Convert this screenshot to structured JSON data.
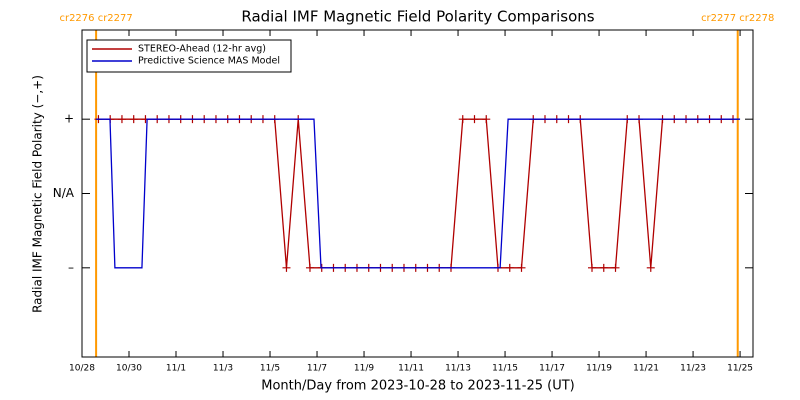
{
  "chart_data": {
    "type": "line",
    "title": "Radial IMF Magnetic Field Polarity Comparisons",
    "x_label": "Month/Day from 2023-10-28 to 2023-11-25 (UT)",
    "y_label": "Radial IMF Magnetic Field Polarity (−,+)",
    "xlim": [
      0,
      28.55
    ],
    "ylim": [
      -2.2,
      2.2
    ],
    "xticks": [
      {
        "value": 0,
        "label": "10/28"
      },
      {
        "value": 2,
        "label": "10/30"
      },
      {
        "value": 4,
        "label": "11/1"
      },
      {
        "value": 6,
        "label": "11/3"
      },
      {
        "value": 8,
        "label": "11/5"
      },
      {
        "value": 10,
        "label": "11/7"
      },
      {
        "value": 12,
        "label": "11/9"
      },
      {
        "value": 14,
        "label": "11/11"
      },
      {
        "value": 16,
        "label": "11/13"
      },
      {
        "value": 18,
        "label": "11/15"
      },
      {
        "value": 20,
        "label": "11/17"
      },
      {
        "value": 22,
        "label": "11/19"
      },
      {
        "value": 24,
        "label": "11/21"
      },
      {
        "value": 26,
        "label": "11/23"
      },
      {
        "value": 28,
        "label": "11/25"
      }
    ],
    "yticks": [
      {
        "value": 1,
        "label": "+"
      },
      {
        "value": 0,
        "label": "N/A"
      },
      {
        "value": -1,
        "label": "–"
      }
    ],
    "legend": "upper left",
    "annotations": [
      {
        "x": 0.6,
        "label": "cr2276 cr2277",
        "color": "#ff9900"
      },
      {
        "x": 27.9,
        "label": "cr2277 cr2278",
        "color": "#ff9900"
      }
    ],
    "series": [
      {
        "name": "STEREO-Ahead (12-hr avg)",
        "color": "#b00000",
        "marker": "+",
        "x": [
          0.7,
          1.2,
          1.7,
          2.2,
          2.7,
          3.2,
          3.7,
          4.2,
          4.7,
          5.2,
          5.7,
          6.2,
          6.7,
          7.2,
          7.7,
          8.2,
          8.7,
          9.2,
          9.7,
          10.2,
          10.7,
          11.2,
          11.7,
          12.2,
          12.7,
          13.2,
          13.7,
          14.2,
          14.7,
          15.2,
          15.7,
          16.2,
          16.7,
          17.2,
          17.7,
          18.2,
          18.7,
          19.2,
          19.7,
          20.2,
          20.7,
          21.2,
          21.7,
          22.2,
          22.7,
          23.2,
          23.7,
          24.2,
          24.7,
          25.2,
          25.7,
          26.2,
          26.7,
          27.2,
          27.7
        ],
        "values": [
          1,
          1,
          1,
          1,
          1,
          1,
          1,
          1,
          1,
          1,
          1,
          1,
          1,
          1,
          1,
          1,
          -1,
          1,
          -1,
          -1,
          -1,
          -1,
          -1,
          -1,
          -1,
          -1,
          -1,
          -1,
          -1,
          -1,
          -1,
          1,
          1,
          1,
          -1,
          -1,
          -1,
          1,
          1,
          1,
          1,
          1,
          -1,
          -1,
          -1,
          1,
          1,
          -1,
          1,
          1,
          1,
          1,
          1,
          1,
          1
        ]
      },
      {
        "name": "Predictive Science MAS Model",
        "color": "#0000cc",
        "x": [
          0.6,
          1.19,
          1.4,
          2.55,
          2.77,
          9.87,
          10.17,
          17.79,
          18.13,
          28.0
        ],
        "values": [
          1,
          1,
          -1,
          -1,
          1,
          1,
          -1,
          -1,
          1,
          1
        ]
      }
    ]
  }
}
